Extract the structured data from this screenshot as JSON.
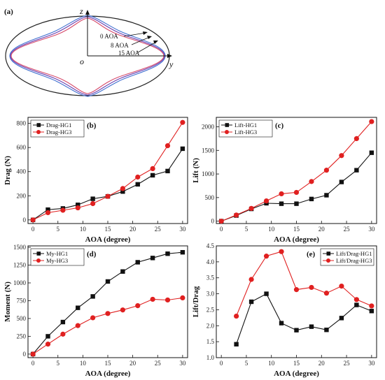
{
  "diagram": {
    "panel_label": "(a)",
    "axis_z": "z",
    "axis_y": "y",
    "origin": "o",
    "labels": [
      "0 AOA",
      "8 AOA",
      "15 AOA"
    ],
    "colors": {
      "outer": "#222222",
      "aoa0": "#d64a6a",
      "aoa8": "#6a3fb0",
      "aoa15": "#3f6fd0"
    }
  },
  "colors": {
    "hg1": "#111111",
    "hg3": "#e02020"
  },
  "chart_data": [
    {
      "id": "b",
      "type": "line",
      "panel_label": "(b)",
      "xlabel": "AOA (degree)",
      "ylabel": "Drag (N)",
      "xlim": [
        -1,
        31
      ],
      "ylim": [
        -30,
        850
      ],
      "xticks": [
        0,
        5,
        10,
        15,
        20,
        25,
        30
      ],
      "yticks": [
        0,
        200,
        400,
        600,
        800
      ],
      "legend": "top-left",
      "series": [
        {
          "name": "Drag-HG1",
          "x": [
            0,
            3,
            6,
            9,
            12,
            15,
            18,
            21,
            24,
            27,
            30
          ],
          "y": [
            0,
            85,
            95,
            125,
            175,
            195,
            235,
            295,
            370,
            405,
            590
          ]
        },
        {
          "name": "Drag-HG3",
          "x": [
            0,
            3,
            6,
            9,
            12,
            15,
            18,
            21,
            24,
            27,
            30
          ],
          "y": [
            0,
            60,
            80,
            100,
            135,
            195,
            260,
            355,
            425,
            615,
            808
          ]
        }
      ]
    },
    {
      "id": "c",
      "type": "line",
      "panel_label": "(c)",
      "xlabel": "AOA (degree)",
      "ylabel": "Lift (N)",
      "xlim": [
        -1,
        31
      ],
      "ylim": [
        -50,
        2200
      ],
      "xticks": [
        0,
        5,
        10,
        15,
        20,
        25,
        30
      ],
      "yticks": [
        0,
        500,
        1000,
        1500,
        2000
      ],
      "legend": "top-left",
      "series": [
        {
          "name": "Lift-HG1",
          "x": [
            0,
            3,
            6,
            9,
            12,
            15,
            18,
            21,
            24,
            27,
            30
          ],
          "y": [
            0,
            120,
            260,
            380,
            370,
            370,
            470,
            550,
            830,
            1080,
            1450
          ]
        },
        {
          "name": "Lift-HG3",
          "x": [
            0,
            3,
            6,
            9,
            12,
            15,
            18,
            21,
            24,
            27,
            30
          ],
          "y": [
            0,
            130,
            270,
            430,
            580,
            610,
            840,
            1080,
            1390,
            1750,
            2110
          ]
        }
      ]
    },
    {
      "id": "d",
      "type": "line",
      "panel_label": "(d)",
      "xlabel": "AOA (degree)",
      "ylabel": "Moment (N)",
      "xlim": [
        -1,
        31
      ],
      "ylim": [
        -50,
        1520
      ],
      "xticks": [
        0,
        5,
        10,
        15,
        20,
        25,
        30
      ],
      "yticks": [
        0,
        250,
        500,
        750,
        1000,
        1250,
        1500
      ],
      "legend": "top-left",
      "series": [
        {
          "name": "My-HG1",
          "x": [
            0,
            3,
            6,
            9,
            12,
            15,
            18,
            21,
            24,
            27,
            30
          ],
          "y": [
            0,
            250,
            450,
            650,
            810,
            1020,
            1160,
            1290,
            1350,
            1410,
            1430
          ]
        },
        {
          "name": "My-HG3",
          "x": [
            0,
            3,
            6,
            9,
            12,
            15,
            18,
            21,
            24,
            27,
            30
          ],
          "y": [
            0,
            140,
            280,
            400,
            510,
            570,
            620,
            680,
            770,
            760,
            790
          ]
        }
      ]
    },
    {
      "id": "e",
      "type": "line",
      "panel_label": "(e)",
      "xlabel": "AOA (degree)",
      "ylabel": "Lift/Drag",
      "xlim": [
        -1,
        31
      ],
      "ylim": [
        1.0,
        4.5
      ],
      "xticks": [
        0,
        5,
        10,
        15,
        20,
        25,
        30
      ],
      "yticks": [
        1.0,
        1.5,
        2.0,
        2.5,
        3.0,
        3.5,
        4.0,
        4.5
      ],
      "legend": "top-right",
      "series": [
        {
          "name": "Lift/Drag-HG1",
          "x": [
            3,
            6,
            9,
            12,
            15,
            18,
            21,
            24,
            27,
            30
          ],
          "y": [
            1.42,
            2.75,
            3.0,
            2.08,
            1.86,
            1.97,
            1.87,
            2.24,
            2.65,
            2.46
          ]
        },
        {
          "name": "Lift/Drag-HG3",
          "x": [
            3,
            6,
            9,
            12,
            15,
            18,
            21,
            24,
            27,
            30
          ],
          "y": [
            2.3,
            3.45,
            4.18,
            4.32,
            3.13,
            3.2,
            3.02,
            3.24,
            2.82,
            2.62
          ]
        }
      ]
    }
  ]
}
